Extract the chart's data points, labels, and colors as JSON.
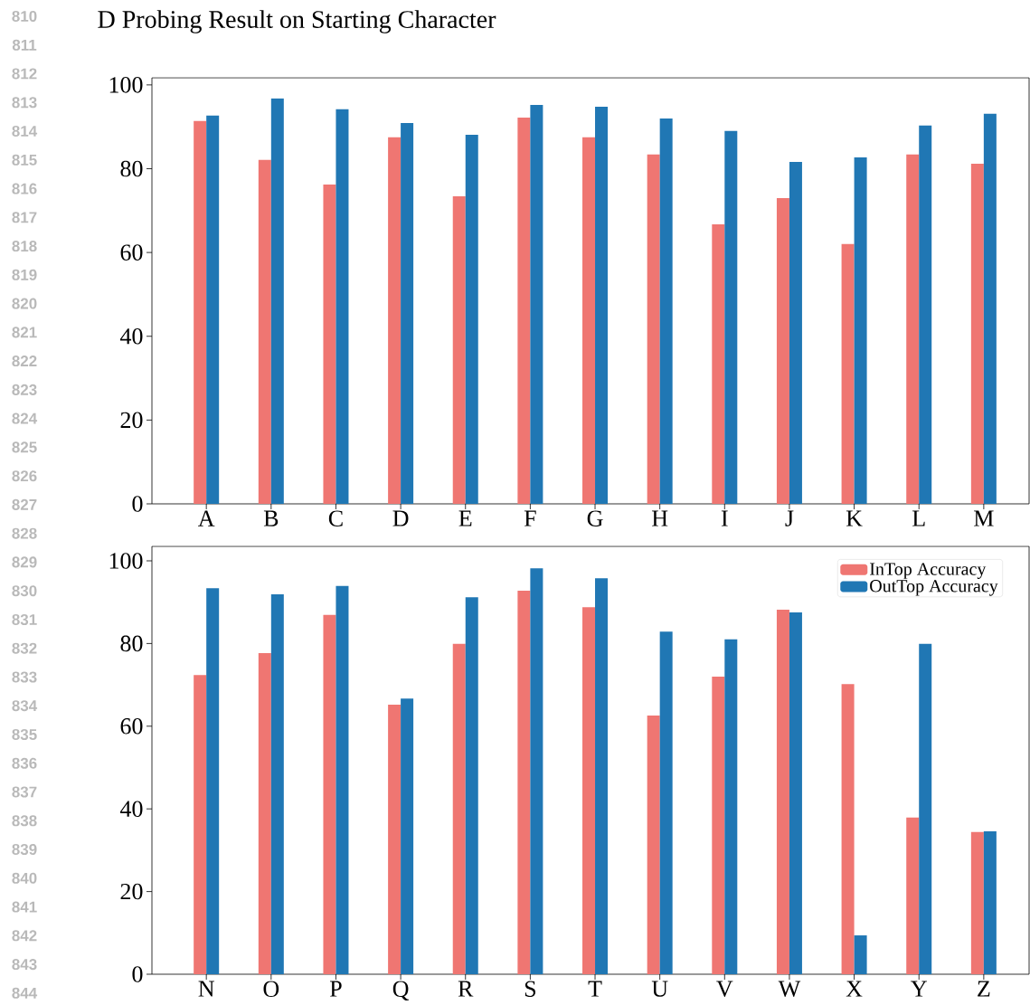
{
  "chart_data": [
    {
      "type": "bar",
      "title": "D Probing Result on Starting Character",
      "annotations": [
        "810",
        "811",
        "812",
        "813",
        "814",
        "815",
        "816",
        "817",
        "818",
        "819",
        "820",
        "821",
        "822",
        "823",
        "824",
        "825",
        "826",
        "827",
        "828",
        "829",
        "830",
        "831",
        "832",
        "833",
        "834",
        "835",
        "836",
        "837",
        "838",
        "839",
        "840",
        "841",
        "842",
        "843",
        "844"
      ],
      "categories": [
        "A",
        "B",
        "C",
        "D",
        "E",
        "F",
        "G",
        "H",
        "I",
        "J",
        "K",
        "L",
        "M"
      ],
      "series": [
        {
          "color": "#ef7672",
          "values": [
            91.4,
            82.1,
            76.2,
            87.5,
            73.4,
            92.2,
            87.5,
            83.4,
            66.7,
            73.0,
            62.0,
            83.4,
            81.2
          ]
        },
        {
          "color": "#2077b4",
          "values": [
            92.7,
            96.8,
            94.2,
            90.9,
            88.1,
            95.2,
            94.8,
            92.0,
            89.0,
            81.6,
            82.7,
            90.3,
            93.1
          ]
        }
      ],
      "ylim": [
        0,
        101.7
      ],
      "yticks": [
        0,
        20,
        40,
        60,
        80,
        100
      ],
      "grid": false,
      "legend": false
    },
    {
      "type": "bar",
      "categories": [
        "N",
        "O",
        "P",
        "Q",
        "R",
        "S",
        "T",
        "U",
        "V",
        "W",
        "X",
        "Y",
        "Z"
      ],
      "series": [
        {
          "name": "InTop Accuracy",
          "color": "#ef7672",
          "values": [
            72.4,
            77.7,
            86.9,
            65.2,
            79.9,
            92.8,
            88.8,
            62.6,
            72.0,
            88.2,
            70.2,
            37.9,
            34.4
          ]
        },
        {
          "name": "OutTop Accuracy",
          "color": "#2077b4",
          "values": [
            93.4,
            91.9,
            93.9,
            66.7,
            91.2,
            98.2,
            95.8,
            82.9,
            81.0,
            87.5,
            9.4,
            79.9,
            34.6
          ]
        }
      ],
      "ylim": [
        0,
        103.5
      ],
      "yticks": [
        0,
        20,
        40,
        60,
        80,
        100
      ],
      "grid": false,
      "legend": "top right"
    }
  ]
}
